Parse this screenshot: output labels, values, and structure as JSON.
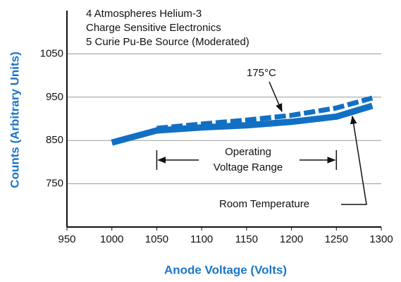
{
  "chart_data": {
    "type": "line",
    "notes": [
      "4 Atmospheres Helium-3",
      "Charge Sensitive Electronics",
      "5 Curie Pu-Be Source (Moderated)"
    ],
    "x_label": "Anode Voltage (Volts)",
    "y_label": "Counts (Arbitrary Units)",
    "x": [
      1000,
      1050,
      1100,
      1150,
      1200,
      1250,
      1290
    ],
    "series": [
      {
        "name": "Room Temperature",
        "color": "#1170c4",
        "style": "solid",
        "values": [
          845,
          873,
          880,
          885,
          893,
          905,
          930
        ]
      },
      {
        "name": "175°C",
        "color": "#1170c4",
        "style": "dashed",
        "values": [
          null,
          878,
          888,
          897,
          908,
          925,
          948
        ]
      }
    ],
    "range_label": [
      "Operating",
      "Voltage Range"
    ],
    "range": [
      1050,
      1250
    ],
    "xlim": [
      950,
      1300
    ],
    "xticks": [
      950,
      1000,
      1050,
      1100,
      1150,
      1200,
      1250,
      1300
    ],
    "ylim": [
      650,
      1150
    ],
    "yticks": [
      750,
      850,
      950,
      1050
    ],
    "grid": true
  }
}
